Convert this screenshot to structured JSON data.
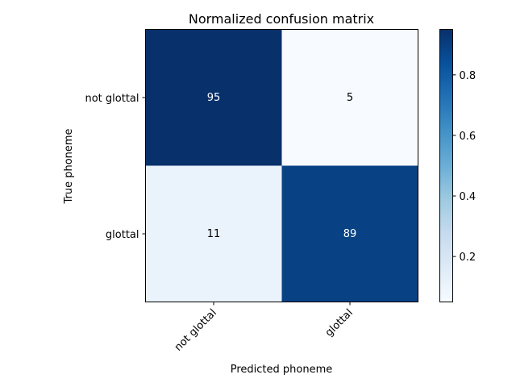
{
  "chart_data": {
    "type": "heatmap",
    "title": "Normalized confusion matrix",
    "xlabel": "Predicted phoneme",
    "ylabel": "True phoneme",
    "x_categories": [
      "not glottal",
      "glottal"
    ],
    "y_categories": [
      "not glottal",
      "glottal"
    ],
    "values": [
      [
        0.95,
        0.05
      ],
      [
        0.11,
        0.89
      ]
    ],
    "cell_labels": [
      [
        "95",
        "5"
      ],
      [
        "11",
        "89"
      ]
    ],
    "colormap": "Blues",
    "colorbar": {
      "range": [
        0.05,
        0.95
      ],
      "ticks": [
        0.2,
        0.4,
        0.6,
        0.8
      ],
      "tick_labels": [
        "0.2",
        "0.4",
        "0.6",
        "0.8"
      ]
    },
    "grid": false
  }
}
